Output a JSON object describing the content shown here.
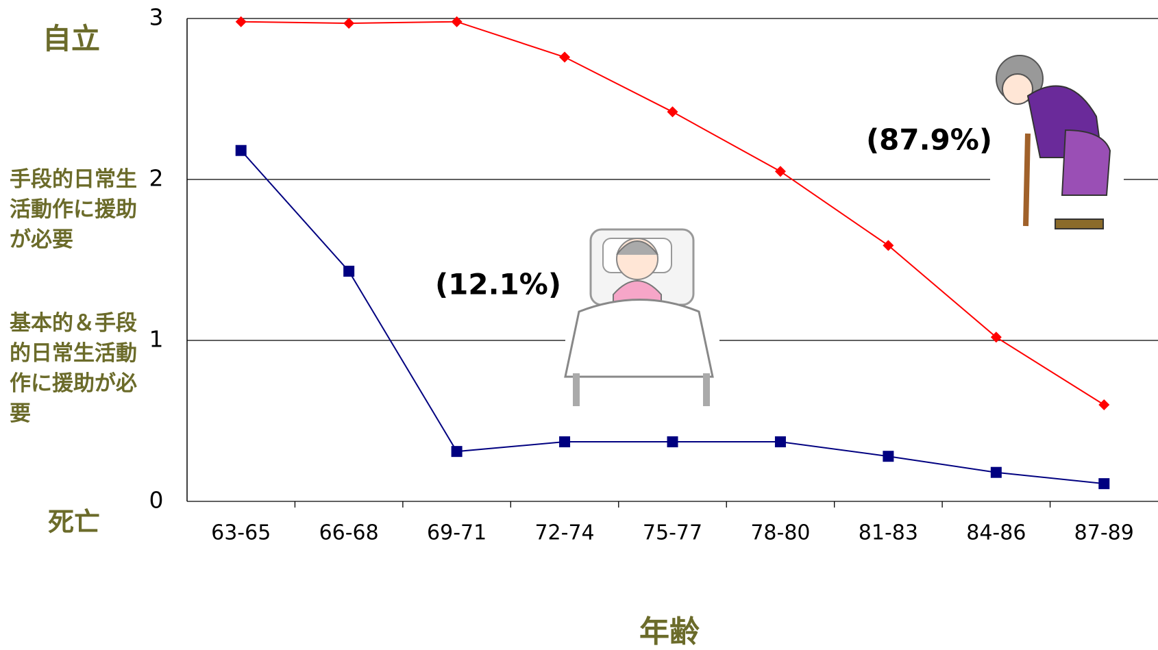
{
  "chart_data": {
    "type": "line",
    "categories": [
      "63-65",
      "66-68",
      "69-71",
      "72-74",
      "75-77",
      "78-80",
      "81-83",
      "84-86",
      "87-89"
    ],
    "series": [
      {
        "color": "#ff0000",
        "marker": "diamond",
        "values": [
          2.98,
          2.97,
          2.98,
          2.76,
          2.42,
          2.05,
          1.59,
          1.02,
          0.6
        ]
      },
      {
        "color": "#000080",
        "marker": "square",
        "values": [
          2.18,
          1.43,
          0.31,
          0.37,
          0.37,
          0.37,
          0.28,
          0.18,
          0.11
        ]
      }
    ],
    "ylim": [
      0,
      3
    ],
    "yticks": [
      0,
      1,
      2,
      3
    ],
    "grid": true,
    "y_level_labels": [
      "死亡",
      "基本的＆手段的日常生活動作に援助が必要",
      "手段的日常生活動作に援助が必要",
      "自立"
    ],
    "xlabel": "年齢",
    "annotations": [
      "(12.1%)",
      "(87.9%)"
    ]
  }
}
